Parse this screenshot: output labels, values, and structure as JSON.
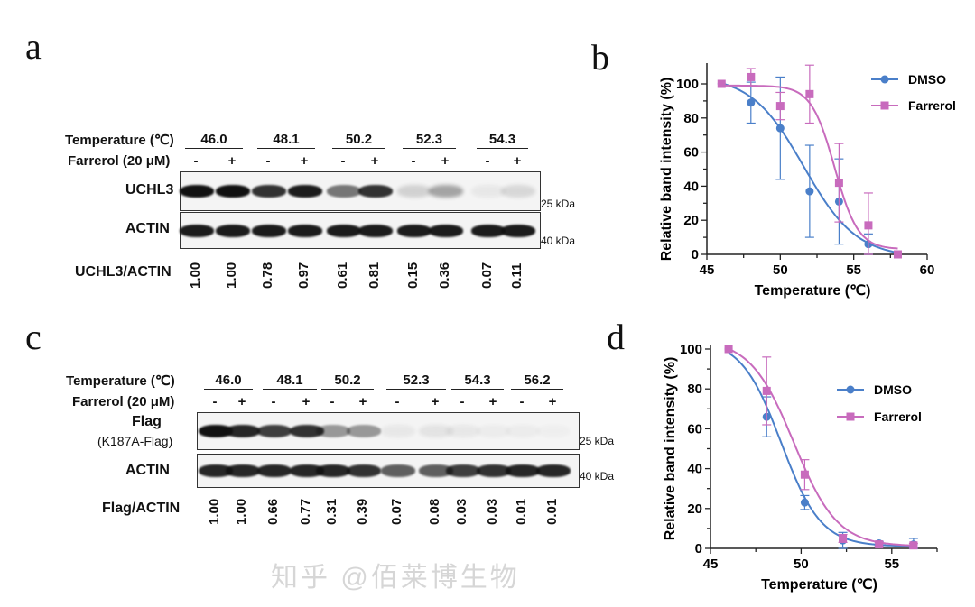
{
  "panels": {
    "a": "a",
    "b": "b",
    "c": "c",
    "d": "d"
  },
  "blot_a": {
    "temp_label": "Temperature (℃)",
    "temps": [
      "46.0",
      "48.1",
      "50.2",
      "52.3",
      "54.3"
    ],
    "treat_label": "Farrerol (20 μM)",
    "signs": [
      "-",
      "+",
      "-",
      "+",
      "-",
      "+",
      "-",
      "+",
      "-",
      "+"
    ],
    "row1_label": "UCHL3",
    "row2_label": "ACTIN",
    "marker1": "25 kDa",
    "marker2": "40 kDa",
    "ratio_label": "UCHL3/ACTIN",
    "ratios": [
      "1.00",
      "1.00",
      "0.78",
      "0.97",
      "0.61",
      "0.81",
      "0.15",
      "0.36",
      "0.07",
      "0.11"
    ]
  },
  "blot_c": {
    "temp_label": "Temperature (℃)",
    "temps": [
      "46.0",
      "48.1",
      "50.2",
      "52.3",
      "54.3",
      "56.2"
    ],
    "treat_label": "Farrerol (20 μM)",
    "signs": [
      "-",
      "+",
      "-",
      "+",
      "-",
      "+",
      "-",
      "+",
      "-",
      "+",
      "-",
      "+"
    ],
    "row1_label": "Flag",
    "row1_sublabel": "(K187A-Flag)",
    "row2_label": "ACTIN",
    "marker1": "25 kDa",
    "marker2": "40 kDa",
    "ratio_label": "Flag/ACTIN",
    "ratios": [
      "1.00",
      "1.00",
      "0.66",
      "0.77",
      "0.31",
      "0.39",
      "0.07",
      "0.08",
      "0.03",
      "0.03",
      "0.01",
      "0.01"
    ]
  },
  "watermark": "知乎 @佰莱博生物",
  "chart_data": [
    {
      "type": "line",
      "panel": "b",
      "xlabel": "Temperature (℃)",
      "ylabel": "Relative band intensity (%)",
      "xlim": [
        45,
        60
      ],
      "ylim": [
        0,
        110
      ],
      "xticks": [
        "45",
        "50",
        "55",
        "60"
      ],
      "yticks": [
        "0",
        "20",
        "40",
        "60",
        "80",
        "100"
      ],
      "legend": "top-right",
      "series": [
        {
          "name": "DMSO",
          "color": "#4a7fc9",
          "marker": "circle",
          "x": [
            46,
            48,
            50,
            52,
            54,
            56,
            58
          ],
          "y": [
            100,
            89,
            74,
            37,
            31,
            6,
            0
          ],
          "err": [
            0,
            12,
            30,
            27,
            25,
            6,
            0
          ]
        },
        {
          "name": "Farrerol",
          "color": "#c86bbd",
          "marker": "square",
          "x": [
            46,
            48,
            50,
            52,
            54,
            56,
            58
          ],
          "y": [
            100,
            104,
            87,
            94,
            42,
            17,
            0
          ],
          "err": [
            0,
            5,
            8,
            17,
            23,
            19,
            0
          ]
        }
      ]
    },
    {
      "type": "line",
      "panel": "d",
      "xlabel": "Temperature (℃)",
      "ylabel": "Relative band intensity (%)",
      "xlim": [
        45,
        57.5
      ],
      "ylim": [
        0,
        100
      ],
      "xticks": [
        "45",
        "50",
        "55"
      ],
      "yticks": [
        "0",
        "20",
        "40",
        "60",
        "80",
        "100"
      ],
      "legend": "top-right",
      "series": [
        {
          "name": "DMSO",
          "color": "#4a7fc9",
          "marker": "circle",
          "x": [
            46.0,
            48.1,
            50.2,
            52.3,
            54.3,
            56.2
          ],
          "y": [
            100,
            66,
            23,
            4,
            2.5,
            2
          ],
          "err": [
            0,
            10,
            3.5,
            4,
            1,
            3
          ]
        },
        {
          "name": "Farrerol",
          "color": "#c86bbd",
          "marker": "square",
          "x": [
            46.0,
            48.1,
            50.2,
            52.3,
            54.3,
            56.2
          ],
          "y": [
            100,
            79,
            37,
            5,
            2,
            1.5
          ],
          "err": [
            0,
            17,
            7.5,
            2,
            1,
            1
          ]
        }
      ]
    }
  ]
}
